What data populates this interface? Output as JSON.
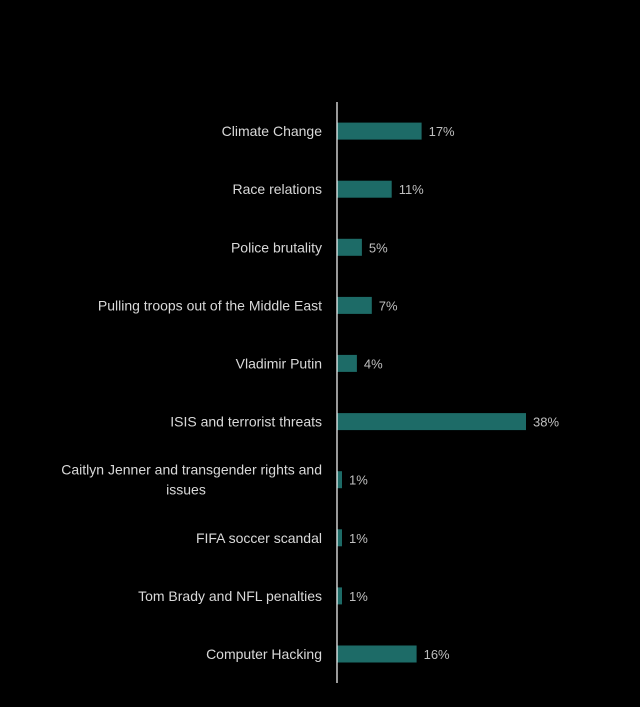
{
  "chart_data": {
    "type": "bar",
    "orientation": "horizontal",
    "categories": [
      "Climate Change",
      "Race relations",
      "Police brutality",
      "Pulling troops out of the Middle East",
      "Vladimir Putin",
      "ISIS and terrorist threats",
      "Caitlyn Jenner and transgender rights and issues",
      "FIFA soccer scandal",
      "Tom Brady and NFL penalties",
      "Computer Hacking"
    ],
    "category_lines": [
      [
        "Climate Change"
      ],
      [
        "Race relations"
      ],
      [
        "Police brutality"
      ],
      [
        "Pulling troops out of the Middle East"
      ],
      [
        "Vladimir Putin"
      ],
      [
        "ISIS and terrorist threats"
      ],
      [
        "Caitlyn Jenner and transgender rights and",
        "issues"
      ],
      [
        "FIFA soccer scandal"
      ],
      [
        "Tom Brady and NFL penalties"
      ],
      [
        "Computer Hacking"
      ]
    ],
    "values": [
      17,
      11,
      5,
      7,
      4,
      38,
      1,
      1,
      1,
      16
    ],
    "value_labels": [
      "17%",
      "11%",
      "5%",
      "7%",
      "4%",
      "38%",
      "1%",
      "1%",
      "1%",
      "16%"
    ],
    "unit": "%",
    "title": "",
    "xlabel": "",
    "ylabel": "",
    "xlim": [
      0,
      40
    ],
    "grid": false,
    "legend": "none",
    "colors": {
      "background": "#000000",
      "bar": "#1d6b67",
      "axis": "#ffffff",
      "category_text": "#d9d9d9",
      "value_text": "#bfbfbf"
    }
  }
}
